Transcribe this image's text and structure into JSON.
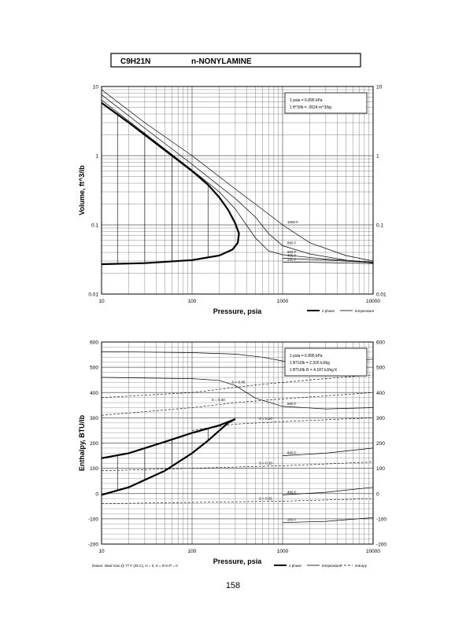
{
  "header": {
    "formula": "C9H21N",
    "compound": "n-NONYLAMINE"
  },
  "page_number": "158",
  "chart_data": [
    {
      "type": "line",
      "title": "",
      "xlabel": "Pressure, psia",
      "ylabel": "Volume, ft^3/lb",
      "x_scale": "log",
      "y_scale": "log",
      "xlim": [
        10,
        10000
      ],
      "ylim": [
        0.01,
        10
      ],
      "x_ticks": [
        "10",
        "100",
        "1000",
        "10000"
      ],
      "y_ticks": [
        "0.01",
        "0.1",
        "1",
        "10"
      ],
      "grid": true,
      "info_box": [
        "1 psia = 6.895 kPa",
        "1 ft^3/lb = .0624 m^3/kg"
      ],
      "legend": {
        "placement": "bottom-right",
        "entries": [
          "2 phase",
          "temperature"
        ]
      },
      "curve_labels": [
        "1000 F",
        "800 F",
        "600 F",
        "400 F",
        "200 F"
      ],
      "series": [
        {
          "name": "2 phase",
          "style": "two-phase",
          "points": [
            [
              10,
              5.8
            ],
            [
              20,
              3.0
            ],
            [
              50,
              1.2
            ],
            [
              100,
              0.6
            ],
            [
              150,
              0.38
            ],
            [
              200,
              0.25
            ],
            [
              250,
              0.165
            ],
            [
              300,
              0.105
            ],
            [
              330,
              0.075
            ],
            [
              320,
              0.055
            ],
            [
              280,
              0.044
            ],
            [
              200,
              0.036
            ],
            [
              100,
              0.031
            ],
            [
              30,
              0.028
            ],
            [
              10,
              0.027
            ]
          ]
        },
        {
          "name": "1000 F",
          "style": "temperature",
          "points": [
            [
              10,
              9.0
            ],
            [
              30,
              3.0
            ],
            [
              100,
              1.0
            ],
            [
              300,
              0.33
            ],
            [
              500,
              0.2
            ],
            [
              1000,
              0.1
            ],
            [
              2000,
              0.055
            ],
            [
              5000,
              0.036
            ],
            [
              10000,
              0.03
            ]
          ]
        },
        {
          "name": "800 F",
          "style": "temperature",
          "points": [
            [
              10,
              7.6
            ],
            [
              30,
              2.5
            ],
            [
              100,
              0.75
            ],
            [
              300,
              0.24
            ],
            [
              500,
              0.13
            ],
            [
              700,
              0.075
            ],
            [
              1000,
              0.05
            ],
            [
              2000,
              0.038
            ],
            [
              5000,
              0.031
            ],
            [
              10000,
              0.028
            ]
          ]
        },
        {
          "name": "600 F",
          "style": "temperature",
          "points": [
            [
              10,
              6.4
            ],
            [
              30,
              2.1
            ],
            [
              100,
              0.62
            ],
            [
              200,
              0.3
            ],
            [
              300,
              0.17
            ],
            [
              500,
              0.065
            ],
            [
              700,
              0.042
            ],
            [
              1000,
              0.037
            ],
            [
              3000,
              0.032
            ],
            [
              10000,
              0.029
            ]
          ]
        },
        {
          "name": "400 F",
          "style": "temperature",
          "points": [
            [
              1000,
              0.033
            ],
            [
              3000,
              0.031
            ],
            [
              10000,
              0.0285
            ]
          ]
        },
        {
          "name": "200 F",
          "style": "temperature",
          "points": [
            [
              1000,
              0.029
            ],
            [
              3000,
              0.0285
            ],
            [
              10000,
              0.0275
            ]
          ]
        }
      ],
      "tie_line_pressures": [
        15,
        30,
        60,
        150
      ]
    },
    {
      "type": "line",
      "title": "",
      "xlabel": "Pressure, psia",
      "ylabel": "Enthalpy, BTU/lb",
      "x_scale": "log",
      "y_scale": "linear",
      "xlim": [
        10,
        10000
      ],
      "ylim": [
        -200,
        600
      ],
      "x_ticks": [
        "10",
        "100",
        "1000",
        "10000"
      ],
      "y_ticks": [
        "-200",
        "-100",
        "0",
        "100",
        "200",
        "300",
        "400",
        "500",
        "600"
      ],
      "grid": true,
      "info_box": [
        "1 psia = 6.895 kPa",
        "1 BTU/lb = 2.326 kJ/kg",
        "1 BTU/lb R = 4.187 kJ/kg K"
      ],
      "legend": {
        "placement": "bottom-right",
        "entries": [
          "2 phase",
          "temperature",
          "entropy"
        ]
      },
      "datum_note": "Datum: Ideal Gas @ 77 F (25 C), H = 0, S = R ln P = 0",
      "curve_labels": [
        "1000 F",
        "800 F",
        "600 F",
        "400 F",
        "200 F",
        "S = 0.45",
        "S = 0.40",
        "S = 0.30",
        "S = 0.20",
        "S = 0.10",
        "S = 0.01"
      ],
      "series": [
        {
          "name": "2 phase",
          "style": "two-phase",
          "points": [
            [
              10,
              140
            ],
            [
              20,
              160
            ],
            [
              50,
              205
            ],
            [
              100,
              240
            ],
            [
              200,
              270
            ],
            [
              300,
              295
            ],
            [
              250,
              280
            ],
            [
              150,
              210
            ],
            [
              100,
              160
            ],
            [
              50,
              90
            ],
            [
              20,
              25
            ],
            [
              10,
              -5
            ]
          ]
        },
        {
          "name": "1000 F",
          "style": "temperature",
          "points": [
            [
              10,
              562
            ],
            [
              100,
              558
            ],
            [
              300,
              552
            ],
            [
              600,
              540
            ],
            [
              1000,
              525
            ],
            [
              2000,
              520
            ],
            [
              5000,
              525
            ],
            [
              10000,
              532
            ]
          ]
        },
        {
          "name": "800 F",
          "style": "temperature",
          "points": [
            [
              10,
              460
            ],
            [
              100,
              455
            ],
            [
              200,
              448
            ],
            [
              300,
              428
            ],
            [
              500,
              378
            ],
            [
              1000,
              345
            ],
            [
              3000,
              335
            ],
            [
              10000,
              340
            ]
          ]
        },
        {
          "name": "600 F",
          "style": "temperature",
          "points": [
            [
              1000,
              150
            ],
            [
              3000,
              160
            ],
            [
              10000,
              180
            ]
          ]
        },
        {
          "name": "400 F",
          "style": "temperature",
          "points": [
            [
              1000,
              -5
            ],
            [
              3000,
              5
            ],
            [
              10000,
              25
            ]
          ]
        },
        {
          "name": "200 F",
          "style": "temperature",
          "points": [
            [
              1000,
              -115
            ],
            [
              3000,
              -110
            ],
            [
              10000,
              -95
            ]
          ]
        },
        {
          "name": "S = 0.45",
          "style": "entropy",
          "points": [
            [
              10,
              380
            ],
            [
              100,
              400
            ],
            [
              500,
              430
            ],
            [
              2000,
              450
            ],
            [
              10000,
              470
            ]
          ]
        },
        {
          "name": "S = 0.40",
          "style": "entropy",
          "points": [
            [
              10,
              310
            ],
            [
              100,
              340
            ],
            [
              300,
              360
            ],
            [
              1000,
              375
            ],
            [
              10000,
              400
            ]
          ]
        },
        {
          "name": "S = 0.20",
          "style": "entropy",
          "points": [
            [
              100,
              250
            ],
            [
              300,
              275
            ],
            [
              1000,
              285
            ],
            [
              10000,
              300
            ]
          ]
        },
        {
          "name": "S = 0.10",
          "style": "entropy",
          "points": [
            [
              10,
              90
            ],
            [
              100,
              100
            ],
            [
              1000,
              110
            ],
            [
              10000,
              125
            ]
          ]
        },
        {
          "name": "S = 0.01",
          "style": "entropy",
          "points": [
            [
              10,
              -40
            ],
            [
              100,
              -35
            ],
            [
              1000,
              -30
            ],
            [
              10000,
              -20
            ]
          ]
        }
      ],
      "tie_line_pressures": [
        15,
        30,
        60,
        150
      ]
    }
  ]
}
